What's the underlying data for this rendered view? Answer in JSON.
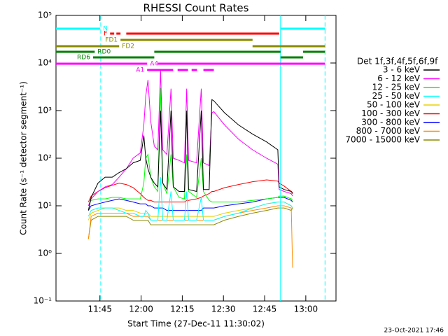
{
  "chart_data": {
    "type": "line",
    "title": "RHESSI Count Rates",
    "x_label": "Start Time (27-Dec-11 11:30:02)",
    "y_label": "Count Rate (s⁻¹ detector segment⁻¹)",
    "legend_title": "Det 1f,3f,4f,5f,6f,9f",
    "footer": "23-Oct-2021 17:46",
    "log_y": true,
    "legend": "right",
    "xlim": [
      689,
      791
    ],
    "xticks": [
      {
        "value": 705,
        "label": "11:45"
      },
      {
        "value": 720,
        "label": "12:00"
      },
      {
        "value": 735,
        "label": "12:15"
      },
      {
        "value": 750,
        "label": "12:30"
      },
      {
        "value": 765,
        "label": "12:45"
      },
      {
        "value": 780,
        "label": "13:00"
      }
    ],
    "ylim": [
      0.1,
      100000
    ],
    "yticks": [
      {
        "value": 0.1,
        "label": "10⁻¹"
      },
      {
        "value": 1,
        "label": "10⁰"
      },
      {
        "value": 10,
        "label": "10¹"
      },
      {
        "value": 100,
        "label": "10²"
      },
      {
        "value": 1000,
        "label": "10³"
      },
      {
        "value": 10000,
        "label": "10⁴"
      },
      {
        "value": 100000,
        "label": "10⁵"
      }
    ],
    "x": [
      700.8,
      701.8,
      704.3,
      706.9,
      709.5,
      712.0,
      714.6,
      717.1,
      719.7,
      721.0,
      721.7,
      722.5,
      723.5,
      724.8,
      726.1,
      727.1,
      727.9,
      729.4,
      730.9,
      731.7,
      733.8,
      735.8,
      736.6,
      737.3,
      740.2,
      741.9,
      742.7,
      744.8,
      745.8,
      746.5,
      750.4,
      755.5,
      760.6,
      765.7,
      769.8,
      770.3,
      772.1,
      774.7,
      775.2
    ],
    "series": [
      {
        "name": "3 - 6 keV",
        "color": "#000000",
        "values": [
          8,
          15,
          30,
          40,
          40,
          50,
          60,
          80,
          90,
          300,
          100,
          60,
          40,
          30,
          25,
          1000,
          30,
          22,
          1000,
          25,
          20,
          20,
          1000,
          22,
          20,
          1000,
          22,
          22,
          1700,
          1600,
          900,
          500,
          320,
          220,
          150,
          25,
          22,
          20,
          18
        ]
      },
      {
        "name": "6 - 12 keV",
        "color": "#ff00ff",
        "values": [
          10,
          14,
          20,
          25,
          28,
          40,
          60,
          100,
          130,
          500,
          2000,
          4400,
          600,
          180,
          150,
          7000,
          150,
          120,
          2900,
          100,
          90,
          80,
          2900,
          90,
          80,
          2900,
          80,
          70,
          900,
          950,
          500,
          250,
          150,
          100,
          75,
          22,
          20,
          18,
          16
        ]
      },
      {
        "name": "12 - 25 keV",
        "color": "#00ff00",
        "values": [
          10,
          13,
          14,
          14,
          15,
          15,
          14,
          14,
          14,
          30,
          100,
          120,
          40,
          25,
          20,
          3000,
          30,
          18,
          120,
          25,
          15,
          14,
          120,
          20,
          15,
          100,
          20,
          13,
          12,
          12,
          12,
          12,
          13,
          14,
          15,
          16,
          16,
          14,
          13
        ]
      },
      {
        "name": "25 - 50 keV",
        "color": "#00ffff",
        "values": [
          6,
          8,
          9,
          9,
          9,
          8,
          7,
          7,
          6,
          6,
          8,
          7,
          5,
          5,
          5,
          40,
          5,
          5,
          20,
          5,
          5,
          5,
          20,
          5,
          5,
          15,
          5,
          5,
          5,
          5,
          6,
          7,
          9,
          11,
          12,
          12,
          12,
          10,
          9
        ]
      },
      {
        "name": "50 - 100 keV",
        "color": "#e8d000",
        "values": [
          5,
          7,
          8,
          9,
          9,
          9,
          8,
          8,
          7,
          7,
          7,
          7,
          6,
          6,
          6,
          6,
          6,
          6,
          6,
          6,
          6,
          6,
          6,
          6,
          6,
          6,
          6,
          6,
          6,
          6,
          7,
          8,
          9,
          11,
          12,
          12,
          12,
          10,
          9
        ]
      },
      {
        "name": "100 - 300 keV",
        "color": "#ff0000",
        "values": [
          12,
          16,
          20,
          24,
          27,
          30,
          28,
          24,
          18,
          15,
          14,
          13,
          13,
          12,
          12,
          12,
          12,
          12,
          12,
          12,
          12,
          12,
          13,
          13,
          14,
          15,
          16,
          18,
          20,
          20,
          24,
          28,
          32,
          35,
          33,
          30,
          26,
          20,
          19
        ]
      },
      {
        "name": "300 - 800 keV",
        "color": "#0000ff",
        "values": [
          8,
          10,
          11,
          12,
          13,
          14,
          13,
          12,
          11,
          11,
          11,
          10,
          10,
          9,
          9,
          9,
          9,
          8,
          8,
          8,
          8,
          8,
          8,
          8,
          8,
          8,
          9,
          9,
          9,
          9,
          10,
          11,
          12,
          14,
          15,
          15,
          15,
          13,
          12
        ]
      },
      {
        "name": "800 - 7000 keV",
        "color": "#ff8c00",
        "values": [
          2,
          6,
          7,
          7,
          7,
          7,
          7,
          6,
          6,
          6,
          6,
          6,
          5,
          5,
          5,
          5,
          5,
          5,
          5,
          5,
          5,
          5,
          5,
          5,
          5,
          5,
          5,
          5,
          5,
          5,
          6,
          7,
          8,
          9,
          10,
          10,
          10,
          9,
          0.5
        ]
      },
      {
        "name": "7000 - 15000 keV",
        "color": "#8b8b00",
        "values": [
          2,
          5,
          6,
          6,
          6,
          6,
          6,
          5,
          5,
          5,
          5,
          5,
          4,
          4,
          4,
          4,
          4,
          4,
          4,
          4,
          4,
          4,
          4,
          4,
          4,
          4,
          4,
          4,
          4,
          4,
          5,
          6,
          7,
          8,
          9,
          9,
          9,
          8,
          9
        ]
      }
    ],
    "flags": [
      {
        "label": "N",
        "color": "#00ffff",
        "segments": [
          [
            689,
            705.1
          ],
          [
            770.8,
            787
          ]
        ]
      },
      {
        "label": "F",
        "color": "#ff0000",
        "segments": [
          [
            708.7,
            710.2
          ],
          [
            711.0,
            712.5
          ],
          [
            714.6,
            770.3
          ]
        ]
      },
      {
        "label": "FD1",
        "color": "#8b8b00",
        "segments": [
          [
            712.5,
            760.6
          ]
        ]
      },
      {
        "label": "FD2",
        "color": "#8b8b00",
        "segments": [
          [
            689,
            712.0
          ],
          [
            760.6,
            787
          ]
        ]
      },
      {
        "label": "RD0",
        "color": "#008000",
        "segments": [
          [
            689,
            703.1
          ],
          [
            724.8,
            770.8
          ],
          [
            779,
            787
          ]
        ]
      },
      {
        "label": "RD6",
        "color": "#008000",
        "segments": [
          [
            702.5,
            724.8
          ],
          [
            770.8,
            779
          ]
        ]
      },
      {
        "label": "A4",
        "color": "#ff00ff",
        "segments": [
          [
            689,
            722.2
          ],
          [
            726.1,
            787
          ]
        ]
      },
      {
        "label": "A1",
        "color": "#ff00ff",
        "segments": [
          [
            722.2,
            731.7
          ],
          [
            733.3,
            737.1
          ],
          [
            738.4,
            740.4
          ],
          [
            742.7,
            746.5
          ]
        ]
      }
    ],
    "markers": [
      {
        "x": 705.3,
        "color": "#00ffff",
        "dashed": true
      },
      {
        "x": 770.8,
        "color": "#00ffff",
        "dashed": false
      },
      {
        "x": 787,
        "color": "#00ffff",
        "dashed": true
      }
    ]
  }
}
